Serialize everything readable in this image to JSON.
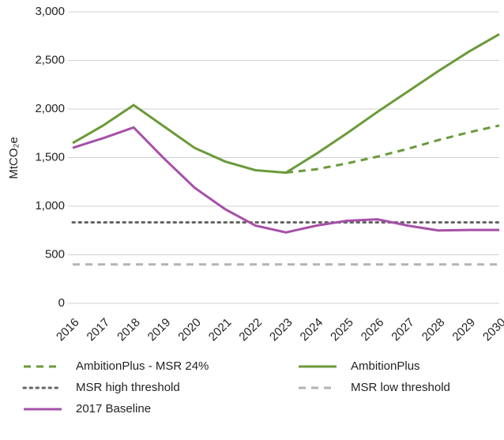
{
  "chart_data": {
    "type": "line",
    "y_label": "MtCO₂e",
    "categories": [
      "2016",
      "2017",
      "2018",
      "2019",
      "2020",
      "2021",
      "2022",
      "2023",
      "2024",
      "2025",
      "2026",
      "2027",
      "2028",
      "2029",
      "2030"
    ],
    "ylim": [
      0,
      3000
    ],
    "yticks": [
      0,
      500,
      {
        "value": 1000,
        "label": "1,000"
      },
      {
        "value": 1500,
        "label": "1,500"
      },
      {
        "value": 2000,
        "label": "2,000"
      },
      {
        "value": 2500,
        "label": "2,500"
      },
      {
        "value": 3000,
        "label": "3,000"
      }
    ],
    "grid": true,
    "legend": "bottom",
    "series": [
      {
        "name": "AmbitionPlus - MSR 24%",
        "color": "#6a9a3a",
        "dash": "dashed",
        "values": [
          null,
          null,
          null,
          null,
          null,
          null,
          null,
          1345,
          1380,
          1440,
          1510,
          1590,
          1680,
          1760,
          1830
        ]
      },
      {
        "name": "AmbitionPlus",
        "color": "#6a9a3a",
        "dash": "solid",
        "values": [
          1650,
          1830,
          2040,
          1820,
          1600,
          1460,
          1370,
          1345,
          1540,
          1750,
          1970,
          2180,
          2390,
          2590,
          2770
        ]
      },
      {
        "name": "MSR high threshold",
        "color": "#666666",
        "dash": "dotted",
        "values": [
          833,
          833,
          833,
          833,
          833,
          833,
          833,
          833,
          833,
          833,
          833,
          833,
          833,
          833,
          833
        ]
      },
      {
        "name": "MSR low threshold",
        "color": "#b3b3b3",
        "dash": "dashed",
        "values": [
          400,
          400,
          400,
          400,
          400,
          400,
          400,
          400,
          400,
          400,
          400,
          400,
          400,
          400,
          400
        ]
      },
      {
        "name": "2017 Baseline",
        "color": "#a550a8",
        "dash": "solid",
        "values": [
          1600,
          1700,
          1810,
          1490,
          1190,
          970,
          800,
          730,
          800,
          850,
          865,
          800,
          750,
          755,
          755
        ]
      }
    ]
  }
}
